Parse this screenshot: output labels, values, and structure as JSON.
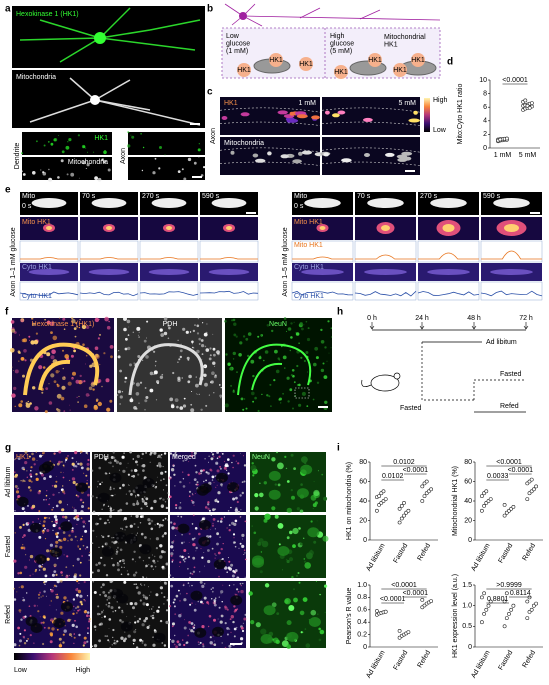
{
  "panel_labels": [
    "a",
    "b",
    "c",
    "d",
    "e",
    "f",
    "g",
    "h",
    "i"
  ],
  "a": {
    "top": "Hexokinase 1 (HK1)",
    "middle": "Mitochondria",
    "dendrite": "Dendrite",
    "dendrite_top": "HK1",
    "dendrite_bottom": "Mitochondria",
    "axon": "Axon"
  },
  "b": {
    "low": [
      "Low",
      "glucose",
      "(1 mM)"
    ],
    "high": [
      "High",
      "glucose",
      "(5 mM)"
    ],
    "mito_hk1": [
      "Mitochondrial",
      "HK1"
    ],
    "hk1": [
      "HK1",
      "HK1",
      "HK1",
      "HK1",
      "HK1",
      "HK1",
      "HK1"
    ]
  },
  "c": {
    "hk1": "HK1",
    "low_conc": "1 mM",
    "high_conc": "5 mM",
    "scale_high": "High",
    "scale_low": "Low",
    "side": "Axon",
    "mito": "Mitochondria"
  },
  "e": {
    "left": {
      "side": "Axon 1–1 mM glucose",
      "mito": "Mito",
      "times": [
        "0 s",
        "70 s",
        "270 s",
        "590 s"
      ],
      "mito_hk1": "Mito HK1",
      "cyto_hk1": "Cyto HK1",
      "cyto_trace": "Cyto HK1"
    },
    "right": {
      "side": "Axon 1–5 mM glucose",
      "mito": "Mito",
      "times": [
        "0 s",
        "70 s",
        "270 s",
        "590 s"
      ],
      "mito_hk1": "Mito HK1",
      "cyto_hk1": "Cyto HK1",
      "mito_trace": "Mito HK1",
      "cyto_trace": "Cyto HK1"
    }
  },
  "f": {
    "hk1": "Hexokinase 1 (HK1)",
    "pdh": "PDH",
    "neun": "NeuN"
  },
  "g": {
    "columns": [
      "HK1",
      "PDH",
      "Merged",
      "NeuN"
    ],
    "rows": [
      "Ad libitum",
      "Fasted",
      "Refed"
    ],
    "scale_low": "Low",
    "scale_high": "High"
  },
  "h": {
    "times": [
      "0 h",
      "24 h",
      "48 h",
      "72 h"
    ],
    "ad_libitum": "Ad libitum",
    "fasted_early": "Fasted",
    "fasted_late": "Fasted",
    "refed": "Refed"
  },
  "chart_data": [
    {
      "type": "dot",
      "ylabel": "Mito:Cyto HK1 ratio",
      "categories": [
        "1 mM",
        "5 mM"
      ],
      "color": "#222222",
      "values": [
        [
          1.0,
          1.1,
          1.15,
          1.2,
          1.2,
          1.25,
          1.3,
          1.3,
          1.35,
          1.4,
          1.1,
          1.25
        ],
        [
          5.6,
          5.8,
          5.9,
          6.0,
          6.1,
          6.2,
          6.3,
          6.4,
          6.5,
          6.6,
          6.8,
          7.0,
          6.2,
          5.9
        ]
      ],
      "ylim": [
        0,
        10
      ],
      "yticks": [
        0,
        2,
        4,
        6,
        8,
        10
      ],
      "annotations": {
        "first_vs_second": "<0.0001"
      }
    },
    {
      "type": "dot",
      "ylabel": "HK1 on mitochondria (%)",
      "categories": [
        "Ad libitum",
        "Fasted",
        "Refed"
      ],
      "color": "#222222",
      "values": [
        [
          30,
          36,
          38,
          40,
          42,
          44,
          45,
          48,
          50
        ],
        [
          18,
          22,
          25,
          28,
          30,
          32,
          35,
          38
        ],
        [
          40,
          45,
          48,
          50,
          52,
          55,
          58,
          60
        ]
      ],
      "ylim": [
        0,
        80
      ],
      "yticks": [
        0,
        20,
        40,
        60,
        80
      ],
      "annotations": {
        "ad_libitum_vs_refed": "0.0102",
        "ad_libitum_vs_fasted": "0.0102",
        "fasted_vs_refed": "<0.0001"
      }
    },
    {
      "type": "dot",
      "ylabel": "Mitochondrial HK1 (%)",
      "categories": [
        "Ad libitum",
        "Fasted",
        "Refed"
      ],
      "color": "#222222",
      "values": [
        [
          30,
          35,
          38,
          40,
          42,
          45,
          48,
          50
        ],
        [
          25,
          28,
          30,
          32,
          34,
          36
        ],
        [
          42,
          48,
          50,
          52,
          55,
          58,
          60,
          62
        ]
      ],
      "ylim": [
        0,
        80
      ],
      "yticks": [
        0,
        20,
        40,
        60,
        80
      ],
      "annotations": {
        "ad_libitum_vs_refed": "<0.0001",
        "ad_libitum_vs_fasted": "0.0033",
        "fasted_vs_refed": "<0.0001"
      }
    },
    {
      "type": "dot",
      "ylabel": "Pearson's R value",
      "categories": [
        "Ad libitum",
        "Fasted",
        "Refed"
      ],
      "color": "#222222",
      "values": [
        [
          0.52,
          0.54,
          0.55,
          0.56,
          0.57,
          0.58
        ],
        [
          0.15,
          0.18,
          0.2,
          0.22,
          0.24,
          0.26
        ],
        [
          0.64,
          0.67,
          0.7,
          0.72,
          0.74,
          0.76
        ]
      ],
      "ylim": [
        0,
        1
      ],
      "yticks": [
        0,
        0.2,
        0.4,
        0.6,
        0.8,
        {
          "value": 1,
          "label": "1.0"
        }
      ],
      "annotations": {
        "ad_libitum_vs_refed": "<0.0001",
        "ad_libitum_vs_fasted": "<0.0001",
        "fasted_vs_refed": "<0.0001"
      }
    },
    {
      "type": "dot",
      "ylabel": "HK1 expression level (a.u.)",
      "categories": [
        "Ad libitum",
        "Fasted",
        "Refed"
      ],
      "color": "#222222",
      "values": [
        [
          0.6,
          0.8,
          0.9,
          1.0,
          1.1,
          1.2,
          1.3
        ],
        [
          0.5,
          0.7,
          0.8,
          0.9,
          1.0,
          1.1,
          1.3
        ],
        [
          0.7,
          0.85,
          0.9,
          1.0,
          1.05,
          1.1,
          1.2
        ]
      ],
      "ylim": [
        0,
        1.5
      ],
      "yticks": [
        0,
        0.5,
        {
          "value": 1,
          "label": "1.0"
        },
        1.5
      ],
      "annotations": {
        "ad_libitum_vs_refed": ">0.9999",
        "ad_libitum_vs_fasted": "0.8801",
        "fasted_vs_refed": "0.8114"
      }
    }
  ]
}
